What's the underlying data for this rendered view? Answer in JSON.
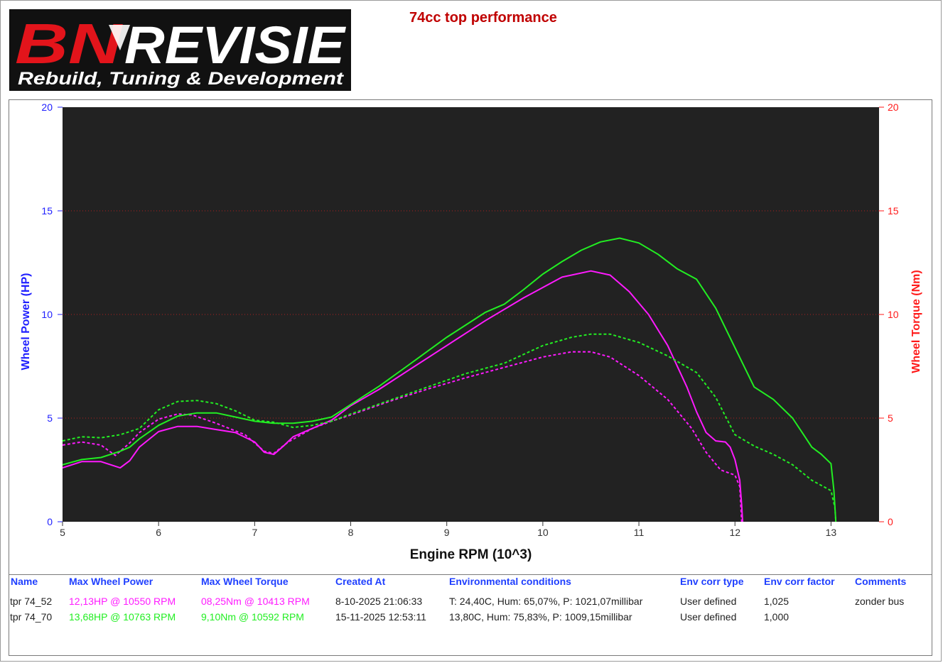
{
  "page": {
    "title": "74cc top performance",
    "logo": {
      "brand": "BNREVISIE",
      "tagline": "Rebuild, Tuning & Development"
    }
  },
  "colors": {
    "plot_bg": "#222222",
    "left_axis": "#2020ff",
    "right_axis": "#ff1a1a",
    "magenta": "#ff1aff",
    "green": "#22ee22",
    "header": "#1f3fff"
  },
  "chart_data": {
    "type": "line",
    "xlabel": "Engine RPM (10^3)",
    "ylabel": "Wheel Power (HP)",
    "y2label": "Wheel Torque (Nm)",
    "xlim": [
      5,
      13.5
    ],
    "ylim": [
      0,
      20
    ],
    "y2lim": [
      0,
      20
    ],
    "xticks": [
      "5",
      "6",
      "7",
      "8",
      "9",
      "10",
      "11",
      "12",
      "13"
    ],
    "yticks": [
      "0",
      "5",
      "10",
      "15",
      "20"
    ],
    "y2ticks": [
      "0",
      "5",
      "10",
      "15",
      "20"
    ],
    "grid": "horizontal dotted red",
    "series": [
      {
        "name": "tpr 74_52",
        "measure": "Wheel Power",
        "axis": "left",
        "color": "#ff1aff",
        "style": "solid",
        "x": [
          5.0,
          5.2,
          5.4,
          5.5,
          5.6,
          5.7,
          5.8,
          6.0,
          6.2,
          6.4,
          6.6,
          6.8,
          7.0,
          7.1,
          7.2,
          7.3,
          7.4,
          7.6,
          7.8,
          8.0,
          8.3,
          8.6,
          9.0,
          9.4,
          9.8,
          10.2,
          10.5,
          10.7,
          10.9,
          11.1,
          11.3,
          11.5,
          11.6,
          11.7,
          11.8,
          11.9,
          11.95,
          12.0,
          12.05,
          12.07,
          12.08
        ],
        "y": [
          2.6,
          2.9,
          2.9,
          2.75,
          2.6,
          2.95,
          3.6,
          4.35,
          4.6,
          4.6,
          4.45,
          4.3,
          3.85,
          3.35,
          3.25,
          3.65,
          4.1,
          4.5,
          4.9,
          5.6,
          6.4,
          7.3,
          8.5,
          9.7,
          10.8,
          11.8,
          12.1,
          11.9,
          11.1,
          10.0,
          8.5,
          6.5,
          5.3,
          4.3,
          3.9,
          3.85,
          3.6,
          3.0,
          2.0,
          0.8,
          0.0
        ]
      },
      {
        "name": "tpr 74_52",
        "measure": "Wheel Torque",
        "axis": "right",
        "color": "#ff1aff",
        "style": "dashed",
        "x": [
          5.0,
          5.2,
          5.4,
          5.55,
          5.7,
          5.8,
          6.0,
          6.2,
          6.35,
          6.6,
          6.9,
          7.1,
          7.2,
          7.35,
          7.6,
          7.8,
          8.0,
          8.4,
          8.8,
          9.2,
          9.6,
          10.0,
          10.3,
          10.5,
          10.7,
          11.0,
          11.3,
          11.55,
          11.7,
          11.85,
          12.0,
          12.05,
          12.07
        ],
        "y": [
          3.7,
          3.85,
          3.7,
          3.2,
          3.8,
          4.3,
          4.95,
          5.2,
          5.15,
          4.75,
          4.2,
          3.4,
          3.3,
          3.85,
          4.5,
          4.85,
          5.15,
          5.8,
          6.4,
          6.95,
          7.45,
          7.95,
          8.2,
          8.2,
          7.95,
          7.05,
          5.9,
          4.5,
          3.35,
          2.5,
          2.25,
          1.7,
          0.0
        ]
      },
      {
        "name": "tpr 74_70",
        "measure": "Wheel Power",
        "axis": "left",
        "color": "#22ee22",
        "style": "solid",
        "x": [
          5.0,
          5.2,
          5.4,
          5.6,
          5.7,
          5.8,
          6.0,
          6.2,
          6.4,
          6.6,
          6.8,
          7.0,
          7.2,
          7.4,
          7.6,
          7.8,
          8.0,
          8.3,
          8.6,
          9.0,
          9.4,
          9.6,
          9.8,
          10.0,
          10.2,
          10.4,
          10.6,
          10.8,
          11.0,
          11.2,
          11.4,
          11.6,
          11.8,
          12.0,
          12.2,
          12.4,
          12.6,
          12.7,
          12.8,
          12.9,
          13.0,
          13.03,
          13.05
        ],
        "y": [
          2.75,
          3.0,
          3.1,
          3.4,
          3.6,
          4.0,
          4.65,
          5.1,
          5.25,
          5.25,
          5.05,
          4.85,
          4.75,
          4.75,
          4.85,
          5.05,
          5.65,
          6.55,
          7.55,
          8.9,
          10.1,
          10.5,
          11.2,
          11.95,
          12.55,
          13.1,
          13.5,
          13.68,
          13.45,
          12.9,
          12.2,
          11.7,
          10.3,
          8.4,
          6.5,
          5.9,
          5.0,
          4.3,
          3.6,
          3.25,
          2.8,
          1.5,
          0.0
        ]
      },
      {
        "name": "tpr 74_70",
        "measure": "Wheel Torque",
        "axis": "right",
        "color": "#22ee22",
        "style": "dashed",
        "x": [
          5.0,
          5.2,
          5.4,
          5.6,
          5.8,
          6.0,
          6.2,
          6.4,
          6.6,
          6.8,
          7.0,
          7.2,
          7.4,
          7.6,
          7.8,
          8.0,
          8.4,
          8.8,
          9.2,
          9.6,
          10.0,
          10.3,
          10.5,
          10.7,
          11.0,
          11.3,
          11.6,
          11.8,
          12.0,
          12.2,
          12.4,
          12.6,
          12.8,
          13.0,
          13.04,
          13.05
        ],
        "y": [
          3.9,
          4.1,
          4.05,
          4.2,
          4.5,
          5.4,
          5.8,
          5.85,
          5.7,
          5.35,
          4.9,
          4.8,
          4.55,
          4.65,
          4.85,
          5.2,
          5.85,
          6.5,
          7.15,
          7.65,
          8.5,
          8.9,
          9.05,
          9.05,
          8.65,
          8.0,
          7.2,
          6.0,
          4.2,
          3.65,
          3.25,
          2.75,
          2.0,
          1.5,
          0.7,
          0.0
        ]
      }
    ]
  },
  "table": {
    "headers": [
      "Name",
      "Max Wheel Power",
      "Max Wheel Torque",
      "Created At",
      "Environmental conditions",
      "Env corr type",
      "Env corr factor",
      "Comments"
    ],
    "rows": [
      {
        "name": "tpr 74_52",
        "max_power": "12,13HP @ 10550 RPM",
        "max_torque": "08,25Nm @ 10413 RPM",
        "created": "8-10-2025 21:06:33",
        "env": "T: 24,40C, Hum: 65,07%, P: 1021,07millibar",
        "corr_type": "User defined",
        "corr_factor": "1,025",
        "comments": "zonder bus",
        "color": "#ff1aff"
      },
      {
        "name": "tpr 74_70",
        "max_power": "13,68HP @ 10763 RPM",
        "max_torque": "9,10Nm @ 10592 RPM",
        "created": "15-11-2025 12:53:11",
        "env": "13,80C, Hum: 75,83%, P: 1009,15millibar",
        "corr_type": "User defined",
        "corr_factor": "1,000",
        "comments": "",
        "color": "#22ee22"
      }
    ]
  }
}
